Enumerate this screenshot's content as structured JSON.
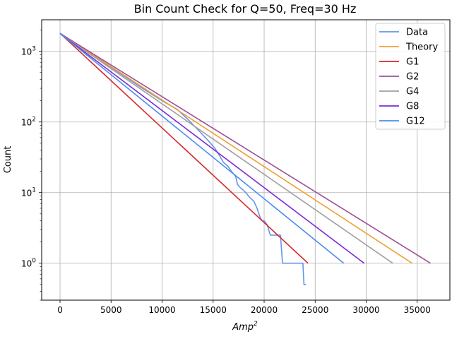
{
  "chart_data": {
    "type": "line",
    "title": "Bin Count Check for Q=50, Freq=30 Hz",
    "xlabel": "Amp",
    "xlabel_superscript": "2",
    "ylabel": "Count",
    "xlim": [
      -1800,
      38200
    ],
    "ylim": [
      0.3,
      2800
    ],
    "yscale": "log",
    "grid": true,
    "legend_position": "top-right",
    "x_ticks": [
      0,
      5000,
      10000,
      15000,
      20000,
      25000,
      30000,
      35000
    ],
    "x_tick_labels": [
      "0",
      "5000",
      "10000",
      "15000",
      "20000",
      "25000",
      "30000",
      "35000"
    ],
    "y_ticks": [
      1,
      10,
      100,
      1000
    ],
    "y_tick_bases": [
      "10",
      "10",
      "10",
      "10"
    ],
    "y_tick_exps": [
      "0",
      "1",
      "2",
      "3"
    ],
    "series": [
      {
        "name": "Data",
        "color": "#6495ED",
        "x": [
          0,
          2000,
          4000,
          6000,
          8000,
          10000,
          11500,
          12500,
          13500,
          14500,
          15200,
          15700,
          16000,
          16400,
          16800,
          17200,
          17400,
          17600,
          17900,
          18200,
          18600,
          19000,
          19300,
          19600,
          19800,
          20000,
          20300,
          20600,
          20800,
          21000,
          21300,
          21600,
          21800,
          22000,
          22500,
          23000,
          23500,
          23800,
          23900,
          24100
        ],
        "y": [
          1800,
          1150,
          740,
          475,
          305,
          200,
          150,
          110,
          78,
          55,
          42,
          32,
          27,
          24,
          20,
          17,
          13,
          12,
          11,
          10,
          8.5,
          7.5,
          6,
          4.5,
          4,
          4,
          3.5,
          2.5,
          2.5,
          2.5,
          2.5,
          2.5,
          1,
          1,
          1,
          1,
          1,
          1,
          0.5,
          0.5
        ]
      },
      {
        "name": "Theory",
        "color": "#F0A030",
        "x": [
          0,
          34500
        ],
        "y": [
          1800,
          1
        ]
      },
      {
        "name": "G1",
        "color": "#D62728",
        "x": [
          0,
          24300
        ],
        "y": [
          1800,
          1
        ]
      },
      {
        "name": "G2",
        "color": "#9B4F96",
        "x": [
          0,
          36300
        ],
        "y": [
          1800,
          1
        ]
      },
      {
        "name": "G4",
        "color": "#A0A0A0",
        "x": [
          0,
          32600
        ],
        "y": [
          1800,
          1
        ]
      },
      {
        "name": "G8",
        "color": "#7B2BD6",
        "x": [
          0,
          29800
        ],
        "y": [
          1800,
          1
        ]
      },
      {
        "name": "G12",
        "color": "#4C8CF0",
        "x": [
          0,
          27800
        ],
        "y": [
          1800,
          1
        ]
      }
    ]
  }
}
